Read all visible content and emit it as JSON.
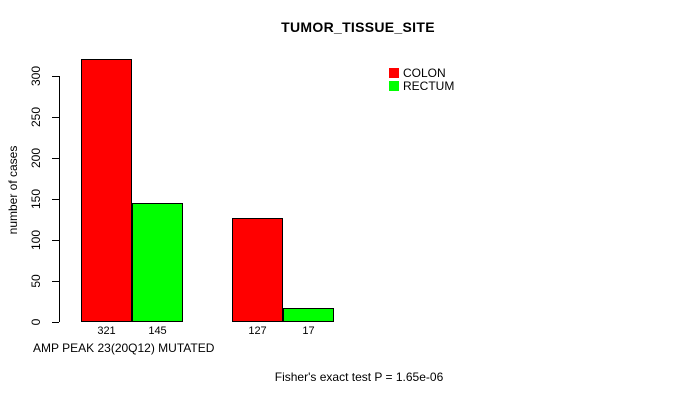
{
  "chart_data": {
    "type": "bar",
    "title": "TUMOR_TISSUE_SITE",
    "ylabel": "number of cases",
    "xlabel": "AMP PEAK 23(20Q12) MUTATED",
    "annotation": "Fisher's exact test P = 1.65e-06",
    "ylim": [
      0,
      300
    ],
    "yticks": [
      0,
      50,
      100,
      150,
      200,
      250,
      300
    ],
    "grid": false,
    "legend_position": "top-right",
    "series": [
      {
        "name": "COLON",
        "color": "#ff0000"
      },
      {
        "name": "RECTUM",
        "color": "#00ff00"
      }
    ],
    "groups": [
      {
        "values": [
          321,
          145
        ]
      },
      {
        "values": [
          127,
          17
        ]
      }
    ],
    "bar_value_labels": [
      "321",
      "145",
      "127",
      "17"
    ]
  }
}
